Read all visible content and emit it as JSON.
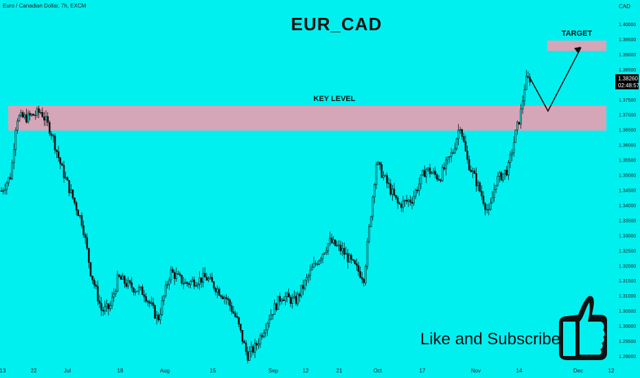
{
  "header": {
    "symbol_line": "Euro / Canadian Dollar, 7h, EXCM"
  },
  "overlay": {
    "title": "EUR_CAD",
    "key_level_label": "KEY LEVEL",
    "target_label": "TARGET",
    "cta": "Like and Subscribe",
    "thumb_icon": "thumbs-up-icon"
  },
  "price_axis": {
    "currency": "CAD",
    "current_price": "1.38260",
    "countdown": "02:48:57"
  },
  "colors": {
    "background": "#00f0f0",
    "zone": "#e0a0b4",
    "ink": "#111111"
  },
  "chart_data": {
    "type": "candlestick",
    "title": "EUR_CAD",
    "ylim": [
      1.286,
      1.408
    ],
    "y_ticks": [
      1.4,
      1.395,
      1.39,
      1.385,
      1.38,
      1.375,
      1.37,
      1.365,
      1.36,
      1.355,
      1.35,
      1.345,
      1.34,
      1.335,
      1.33,
      1.325,
      1.32,
      1.315,
      1.31,
      1.305,
      1.3,
      1.295,
      1.29
    ],
    "x_labels": [
      "13",
      "22",
      "Jul",
      "18",
      "Aug",
      "15",
      "Sep",
      "12",
      "21",
      "Oct",
      "17",
      "Nov",
      "14",
      "Dec",
      "12"
    ],
    "price_path": [
      [
        0,
        1.344
      ],
      [
        16,
        1.35
      ],
      [
        24,
        1.369
      ],
      [
        40,
        1.369
      ],
      [
        60,
        1.371
      ],
      [
        75,
        1.364
      ],
      [
        90,
        1.352
      ],
      [
        105,
        1.343
      ],
      [
        120,
        1.334
      ],
      [
        132,
        1.318
      ],
      [
        148,
        1.305
      ],
      [
        160,
        1.306
      ],
      [
        172,
        1.316
      ],
      [
        190,
        1.313
      ],
      [
        210,
        1.311
      ],
      [
        230,
        1.302
      ],
      [
        248,
        1.318
      ],
      [
        270,
        1.314
      ],
      [
        300,
        1.316
      ],
      [
        330,
        1.309
      ],
      [
        345,
        1.302
      ],
      [
        360,
        1.29
      ],
      [
        372,
        1.293
      ],
      [
        392,
        1.303
      ],
      [
        410,
        1.31
      ],
      [
        430,
        1.308
      ],
      [
        455,
        1.319
      ],
      [
        480,
        1.328
      ],
      [
        498,
        1.325
      ],
      [
        515,
        1.32
      ],
      [
        530,
        1.316
      ],
      [
        548,
        1.354
      ],
      [
        562,
        1.348
      ],
      [
        580,
        1.34
      ],
      [
        600,
        1.342
      ],
      [
        620,
        1.352
      ],
      [
        640,
        1.349
      ],
      [
        660,
        1.358
      ],
      [
        670,
        1.367
      ],
      [
        680,
        1.355
      ],
      [
        695,
        1.347
      ],
      [
        712,
        1.337
      ],
      [
        722,
        1.348
      ],
      [
        740,
        1.352
      ],
      [
        750,
        1.363
      ],
      [
        758,
        1.37
      ],
      [
        765,
        1.381
      ],
      [
        772,
        1.382
      ]
    ],
    "annotations": {
      "key_level_zone": [
        1.3648,
        1.3732
      ],
      "target_zone": [
        1.3912,
        1.3948
      ],
      "projection_path": [
        [
          772,
          1.382
        ],
        [
          798,
          1.3712
        ],
        [
          846,
          1.3922
        ]
      ]
    },
    "current_price": 1.3826
  }
}
